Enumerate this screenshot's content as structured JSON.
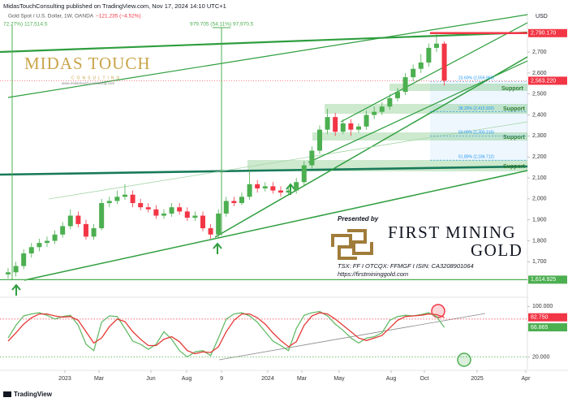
{
  "header": {
    "publisher": "MidasTouchConsulting published on TradingView.com, Nov 17, 2024 14:10 UTC+1",
    "symbol": "Gold Spot / U.S. Dollar, 1W, OANDA",
    "change": "−121.235 (−4.52%)",
    "currency": "USD"
  },
  "logo": {
    "name": "MIDAS TOUCH",
    "sub": "CONSULTING",
    "url": "www.midastouch-consulting.com"
  },
  "sponsor": {
    "intro": "Presented by",
    "name": "FIRST MINING",
    "name2": "GOLD",
    "tickers": "TSX: FF  I  OTCQX: FFMGF  I  ISIN: CA3208901064",
    "url": "https://firstmininggold.com"
  },
  "footer": "TradingView",
  "annotations": {
    "measures": [
      "72,77%) 117,514.5",
      "979.705 (54.11%) 97,970.5"
    ],
    "support": [
      "Support",
      "Support",
      "Support",
      "Support"
    ]
  },
  "chart_data": [
    {
      "type": "candlestick",
      "categories": [
        null,
        null,
        null,
        null,
        null,
        null,
        null,
        null,
        null,
        null,
        null,
        null,
        null,
        null,
        null,
        null,
        null,
        null,
        null,
        null,
        null,
        null,
        null,
        null,
        null,
        null,
        null,
        null,
        null,
        null,
        null,
        null,
        null,
        null,
        null,
        null,
        null,
        null,
        null,
        null,
        null,
        null,
        null,
        null,
        null,
        null,
        null,
        null,
        null,
        null,
        null,
        null,
        null,
        null,
        null,
        null,
        null
      ],
      "open": [
        1640,
        1650,
        1680,
        1740,
        1770,
        1790,
        1800,
        1830,
        1870,
        1920,
        1880,
        1820,
        1860,
        1980,
        1990,
        2010,
        2020,
        1980,
        1960,
        1950,
        1920,
        1930,
        1960,
        1940,
        1910,
        1920,
        1860,
        1830,
        1930,
        1990,
        1980,
        2010,
        2070,
        2050,
        2060,
        2040,
        2030,
        2040,
        2080,
        2160,
        2230,
        2330,
        2390,
        2320,
        2360,
        2330,
        2345,
        2400,
        2415,
        2440,
        2480,
        2510,
        2580,
        2620,
        2650,
        2720,
        2740
      ],
      "high": [
        1670,
        1700,
        1760,
        1790,
        1810,
        1820,
        1850,
        1890,
        1950,
        1940,
        1900,
        1880,
        2000,
        2010,
        2040,
        2070,
        2040,
        2000,
        1980,
        1970,
        1950,
        1980,
        1980,
        1960,
        1940,
        1940,
        1880,
        1950,
        2010,
        2010,
        2030,
        2140,
        2090,
        2080,
        2080,
        2060,
        2060,
        2100,
        2180,
        2250,
        2350,
        2430,
        2410,
        2380,
        2380,
        2360,
        2420,
        2440,
        2460,
        2500,
        2530,
        2600,
        2640,
        2690,
        2740,
        2790.17,
        2750
      ],
      "low": [
        1620,
        1630,
        1665,
        1720,
        1750,
        1770,
        1785,
        1815,
        1855,
        1865,
        1805,
        1805,
        1850,
        1960,
        1975,
        1995,
        1960,
        1945,
        1935,
        1905,
        1905,
        1915,
        1925,
        1895,
        1895,
        1845,
        1810,
        1815,
        1915,
        1965,
        1970,
        1995,
        2030,
        2035,
        2025,
        2010,
        2015,
        2025,
        2065,
        2145,
        2215,
        2310,
        2300,
        2310,
        2300,
        2315,
        2330,
        2380,
        2400,
        2425,
        2465,
        2495,
        2560,
        2600,
        2630,
        2700,
        2540
      ],
      "close": [
        1650,
        1680,
        1740,
        1770,
        1790,
        1800,
        1830,
        1870,
        1920,
        1880,
        1820,
        1860,
        1980,
        1990,
        2010,
        2020,
        1980,
        1960,
        1950,
        1920,
        1930,
        1960,
        1940,
        1910,
        1920,
        1860,
        1830,
        1930,
        1990,
        1980,
        2010,
        2070,
        2050,
        2060,
        2040,
        2030,
        2040,
        2080,
        2160,
        2230,
        2330,
        2390,
        2320,
        2360,
        2330,
        2345,
        2400,
        2415,
        2440,
        2480,
        2510,
        2580,
        2620,
        2650,
        2720,
        2740,
        2563.22
      ],
      "up_color": "#4caf50",
      "down_color": "#f23645",
      "xlim": [
        -1.04,
        66.67
      ],
      "xticks": [
        {
          "value": 7.29,
          "label": "2023"
        },
        {
          "value": 11.67,
          "label": "Mar"
        },
        {
          "value": 18.33,
          "label": "Jun"
        },
        {
          "value": 22.92,
          "label": "Aug"
        },
        {
          "value": 27.4,
          "label": "9"
        },
        {
          "value": 33.33,
          "label": "2024"
        },
        {
          "value": 37.71,
          "label": "Mar"
        },
        {
          "value": 42.5,
          "label": "May"
        },
        {
          "value": 49.17,
          "label": "Aug"
        },
        {
          "value": 53.44,
          "label": "Oct"
        },
        {
          "value": 60.21,
          "label": "2025"
        },
        {
          "value": 66.46,
          "label": "Apr"
        }
      ],
      "ylim": [
        1535,
        2890
      ],
      "yticks": [
        {
          "value": 1700,
          "label": "1,700"
        },
        {
          "value": 1800,
          "label": "1,800"
        },
        {
          "value": 1900,
          "label": "1,900"
        },
        {
          "value": 2000,
          "label": "2,000"
        },
        {
          "value": 2100,
          "label": "2,100"
        },
        {
          "value": 2200,
          "label": "2,200"
        },
        {
          "value": 2300,
          "label": "2,300"
        },
        {
          "value": 2400,
          "label": "2,400"
        },
        {
          "value": 2500,
          "label": "2,500"
        },
        {
          "value": 2600,
          "label": "2,600"
        },
        {
          "value": 2700,
          "label": "2,700"
        }
      ],
      "grid": false,
      "price_lines": [
        {
          "value": 2790.17,
          "label": "2,790.170",
          "color": "#f23645"
        },
        {
          "value": 2563.22,
          "label": "2,563.220",
          "color": "#f23645"
        },
        {
          "value": 1614.925,
          "label": "1,614.925",
          "color": "#4caf50"
        }
      ],
      "fib": [
        {
          "value": 2559.96,
          "label": "23.60% (2,559.960)"
        },
        {
          "value": 2415.92,
          "label": "38.20% (2,415.920)"
        },
        {
          "value": 2300.316,
          "label": "50.00% (2,300.316)"
        },
        {
          "value": 2184.712,
          "label": "61.80% (2,184.712)"
        }
      ]
    },
    {
      "type": "line",
      "series": [
        {
          "color": "#66bb6a",
          "values": [
            50,
            70,
            85,
            88,
            90,
            86,
            80,
            84,
            86,
            70,
            40,
            30,
            75,
            85,
            84,
            65,
            45,
            40,
            32,
            40,
            60,
            48,
            30,
            20,
            28,
            30,
            22,
            50,
            80,
            88,
            90,
            85,
            75,
            60,
            45,
            38,
            30,
            65,
            86,
            90,
            92,
            85,
            72,
            62,
            50,
            42,
            50,
            52,
            58,
            78,
            84,
            86,
            85,
            87,
            90,
            84,
            66.865
          ]
        },
        {
          "color": "#e53935",
          "values": [
            45,
            58,
            72,
            82,
            88,
            88,
            85,
            83,
            84,
            78,
            60,
            42,
            50,
            68,
            80,
            76,
            60,
            48,
            38,
            38,
            48,
            52,
            44,
            30,
            25,
            28,
            27,
            36,
            60,
            78,
            88,
            88,
            82,
            72,
            58,
            46,
            36,
            44,
            70,
            85,
            90,
            88,
            80,
            70,
            60,
            50,
            46,
            50,
            54,
            66,
            78,
            84,
            85,
            86,
            88,
            87,
            82.75
          ]
        }
      ],
      "ylim": [
        0,
        112
      ],
      "yticks": [
        {
          "value": 20,
          "label": "20.000"
        },
        {
          "value": 100,
          "label": "100.000"
        }
      ],
      "levels": [
        {
          "value": 80,
          "color": "#f23645"
        },
        {
          "value": 20,
          "color": "#4caf50"
        }
      ],
      "level_labels": [
        {
          "value": 82.75,
          "label": "82.750",
          "color": "#f23645"
        },
        {
          "value": 66.865,
          "label": "66.865",
          "color": "#4caf50"
        }
      ]
    }
  ]
}
